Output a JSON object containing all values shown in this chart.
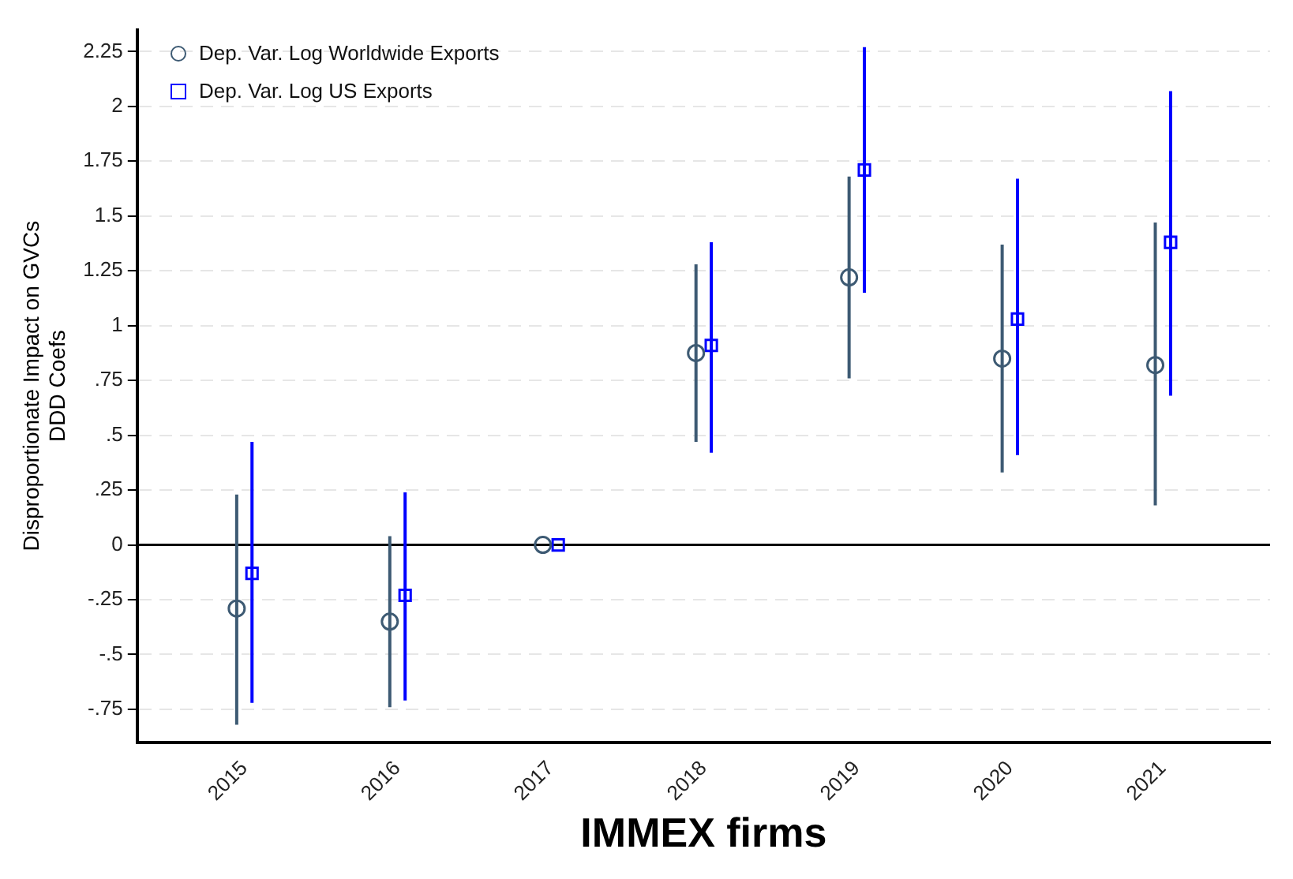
{
  "chart_data": {
    "type": "scatter",
    "xlabel": "IMMEX firms",
    "ylabel": "Disproportionate Impact on GVCs\nDDD Coefs",
    "categories": [
      "2015",
      "2016",
      "2017",
      "2018",
      "2019",
      "2020",
      "2021"
    ],
    "series": [
      {
        "name": "Dep. Var. Log Worldwide Exports",
        "color": "#3d5a73",
        "marker": "circle",
        "values": [
          -0.29,
          -0.35,
          0,
          0.875,
          1.22,
          0.85,
          0.82
        ],
        "errors": [
          [
            -0.82,
            0.23
          ],
          [
            -0.74,
            0.04
          ],
          null,
          [
            0.47,
            1.28
          ],
          [
            0.76,
            1.68
          ],
          [
            0.33,
            1.37
          ],
          [
            0.18,
            1.47
          ]
        ]
      },
      {
        "name": "Dep. Var. Log US Exports",
        "color": "#0000ff",
        "marker": "square",
        "values": [
          -0.13,
          -0.23,
          0,
          0.91,
          1.71,
          1.03,
          1.38
        ],
        "errors": [
          [
            -0.72,
            0.47
          ],
          [
            -0.71,
            0.24
          ],
          null,
          [
            0.42,
            1.38
          ],
          [
            1.15,
            2.27
          ],
          [
            0.41,
            1.67
          ],
          [
            0.68,
            2.07
          ]
        ]
      }
    ],
    "ylim": [
      -0.9,
      2.35
    ],
    "yticks": [
      {
        "value": -0.75,
        "label": "-.75"
      },
      {
        "value": -0.5,
        "label": "-.5"
      },
      {
        "value": -0.25,
        "label": "-.25"
      },
      0,
      {
        "value": 0.25,
        "label": ".25"
      },
      {
        "value": 0.5,
        "label": ".5"
      },
      {
        "value": 0.75,
        "label": ".75"
      },
      1,
      1.25,
      1.5,
      1.75,
      2,
      2.25
    ],
    "ref_lines": [
      {
        "axis": "y",
        "value": 0,
        "color": "#000000"
      }
    ],
    "grid": "y",
    "legend": "top left"
  }
}
